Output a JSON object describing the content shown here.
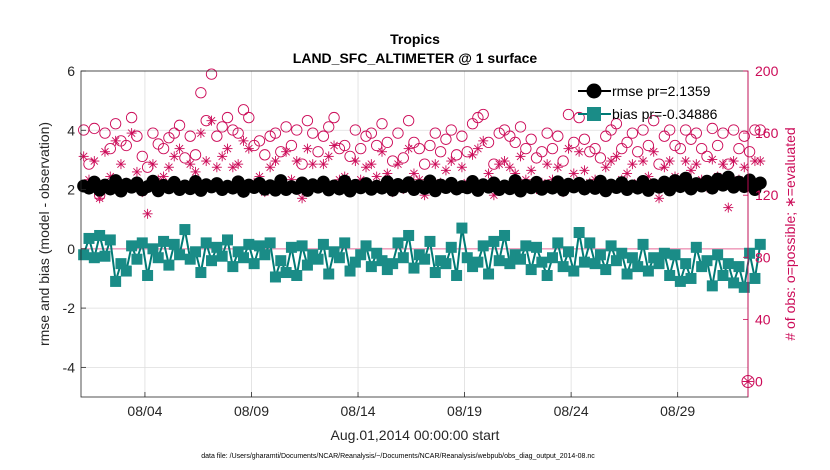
{
  "chart_data": {
    "type": "line",
    "title": "Tropics",
    "subtitle": "LAND_SFC_ALTIMETER @ 1 surface",
    "xlabel": "Aug.01,2014 00:00:00 start",
    "ylabel_left": "rmse and bias (model - observation)",
    "ylabel_right": "# of obs: o=possible; ∗=evaluated",
    "footnote": "data file: /Users/gharamti/Documents/NCAR/Reanalysis/~/Documents/NCAR/Reanalysis/webpub/obs_diag_output_2014-08.nc",
    "x_tick_labels": [
      "08/04",
      "08/09",
      "08/14",
      "08/19",
      "08/24",
      "08/29"
    ],
    "x_tick_days": [
      4,
      9,
      14,
      19,
      24,
      29
    ],
    "xlim_days": [
      1,
      32.3
    ],
    "ylim_left": [
      -5,
      6
    ],
    "yticks_left": [
      "6",
      "4",
      "2",
      "0",
      "-2",
      "-4"
    ],
    "yticks_left_values": [
      6,
      4,
      2,
      0,
      -2,
      -4
    ],
    "ylim_right": [
      -10,
      200
    ],
    "yticks_right": [
      "200",
      "160",
      "120",
      "80",
      "40",
      "0"
    ],
    "yticks_right_values": [
      200,
      160,
      120,
      80,
      40,
      0
    ],
    "grid": true,
    "legend_position": "top-right",
    "samples_per_day": 4,
    "colors": {
      "rmse": "#000000",
      "bias": "#007a75",
      "bias_marker": "#1a8c87",
      "obs": "#cc0b58",
      "zero_line": "#f0a3c0",
      "grid": "#dedede"
    },
    "series": [
      {
        "name": "rmse pr=2.1359",
        "axis": "left",
        "marker": "circle",
        "values": [
          2.12,
          2.05,
          2.25,
          1.98,
          2.15,
          2.02,
          2.3,
          1.95,
          2.18,
          2.08,
          2.22,
          1.99,
          2.1,
          2.28,
          1.96,
          2.14,
          2.06,
          2.24,
          2.0,
          2.12,
          2.03,
          2.27,
          1.97,
          2.16,
          2.09,
          2.2,
          2.0,
          2.11,
          2.05,
          2.26,
          1.94,
          2.15,
          2.07,
          2.21,
          2.01,
          2.13,
          1.98,
          2.3,
          2.0,
          2.1,
          2.04,
          2.22,
          1.97,
          2.16,
          2.08,
          2.25,
          1.99,
          2.12,
          2.02,
          2.28,
          1.95,
          2.14,
          2.06,
          2.2,
          2.01,
          2.11,
          2.05,
          2.26,
          1.98,
          2.17,
          2.09,
          2.23,
          2.0,
          2.13,
          2.04,
          2.29,
          1.96,
          2.15,
          2.07,
          2.21,
          2.02,
          2.1,
          2.06,
          2.27,
          1.97,
          2.16,
          2.08,
          2.22,
          2.0,
          2.12,
          2.03,
          2.3,
          1.95,
          2.14,
          2.06,
          2.24,
          2.01,
          2.11,
          2.05,
          2.26,
          1.98,
          2.18,
          2.09,
          2.21,
          2.02,
          2.13,
          2.04,
          2.28,
          1.96,
          2.15,
          2.07,
          2.23,
          2.0,
          2.12,
          2.05,
          2.27,
          1.97,
          2.16,
          2.08,
          2.25,
          1.99,
          2.3,
          2.1,
          2.38,
          2.02,
          2.2,
          2.12,
          2.28,
          2.05,
          2.35,
          2.15,
          2.42,
          2.08,
          2.25,
          2.1,
          2.32,
          2.0,
          2.22
        ]
      },
      {
        "name": "bias pr=-0.34886",
        "axis": "left",
        "marker": "square",
        "values": [
          -0.2,
          0.35,
          -0.3,
          0.45,
          -0.25,
          0.3,
          -1.1,
          -0.5,
          -0.75,
          0.1,
          -0.35,
          0.2,
          -0.9,
          0.0,
          -0.3,
          0.25,
          -0.55,
          0.15,
          -0.2,
          0.65,
          -0.35,
          -0.1,
          -0.8,
          0.2,
          -0.4,
          0.05,
          -0.25,
          0.3,
          -0.6,
          -0.1,
          -0.3,
          0.15,
          -0.5,
          0.1,
          -0.2,
          0.2,
          -0.95,
          -0.4,
          -0.8,
          0.05,
          -0.9,
          0.1,
          -0.55,
          -0.2,
          -0.35,
          0.15,
          -0.85,
          -0.1,
          -0.3,
          0.2,
          -0.75,
          -0.45,
          -0.2,
          0.1,
          -0.6,
          -0.15,
          -0.4,
          -0.7,
          -0.5,
          0.2,
          -0.3,
          0.45,
          -0.65,
          -0.2,
          -0.35,
          0.25,
          -0.8,
          -0.4,
          -0.5,
          0.05,
          -0.9,
          0.7,
          -0.3,
          -0.6,
          -0.45,
          0.1,
          -0.85,
          0.25,
          -0.4,
          0.45,
          -0.5,
          -0.2,
          -0.35,
          0.1,
          -0.7,
          0.05,
          -0.45,
          -0.9,
          -0.3,
          0.2,
          -0.6,
          -0.1,
          -0.75,
          0.55,
          -0.45,
          0.2,
          -0.5,
          -0.2,
          -0.7,
          0.1,
          -0.4,
          -0.15,
          -0.85,
          -0.3,
          -0.6,
          0.15,
          -0.75,
          -0.3,
          -0.5,
          -0.15,
          -0.9,
          -0.2,
          -1.1,
          -0.5,
          -1.0,
          0.05,
          -0.6,
          -0.4,
          -1.25,
          -0.2,
          -0.9,
          -0.5,
          -1.15,
          -0.6,
          -1.3,
          -0.15,
          -1.0,
          0.15
        ]
      },
      {
        "name": "possible",
        "axis": "right",
        "marker": "o",
        "values": [
          162,
          140,
          163,
          120,
          160,
          150,
          166,
          155,
          152,
          170,
          158,
          145,
          138,
          160,
          153,
          150,
          157,
          160,
          165,
          144,
          158,
          146,
          186,
          168,
          198,
          158,
          164,
          170,
          162,
          160,
          175,
          170,
          152,
          155,
          146,
          158,
          160,
          148,
          164,
          152,
          162,
          140,
          168,
          160,
          148,
          158,
          164,
          170,
          150,
          152,
          145,
          162,
          150,
          158,
          160,
          152,
          166,
          154,
          142,
          160,
          144,
          168,
          154,
          150,
          140,
          152,
          160,
          148,
          156,
          162,
          146,
          158,
          148,
          166,
          170,
          172,
          154,
          140,
          160,
          162,
          158,
          154,
          164,
          150,
          156,
          144,
          148,
          160,
          150,
          158,
          142,
          172,
          154,
          170,
          156,
          148,
          150,
          144,
          158,
          162,
          166,
          150,
          154,
          160,
          148,
          162,
          152,
          168,
          140,
          158,
          162,
          152,
          150,
          162,
          156,
          160,
          150,
          145,
          163,
          152,
          160,
          140,
          162,
          150,
          158,
          148,
          162,
          162
        ]
      },
      {
        "name": "evaluated",
        "axis": "right",
        "marker": "asterisk",
        "values": [
          145,
          130,
          142,
          118,
          148,
          132,
          155,
          140,
          128,
          160,
          135,
          122,
          108,
          140,
          130,
          132,
          138,
          145,
          150,
          125,
          140,
          135,
          160,
          142,
          168,
          138,
          145,
          150,
          138,
          140,
          155,
          150,
          128,
          132,
          122,
          138,
          142,
          125,
          148,
          130,
          142,
          118,
          150,
          140,
          126,
          140,
          145,
          152,
          130,
          132,
          125,
          142,
          130,
          138,
          140,
          132,
          148,
          134,
          122,
          140,
          124,
          150,
          134,
          130,
          120,
          130,
          140,
          128,
          136,
          142,
          126,
          138,
          128,
          146,
          150,
          155,
          134,
          120,
          140,
          142,
          138,
          134,
          145,
          130,
          136,
          124,
          128,
          140,
          130,
          138,
          122,
          150,
          134,
          148,
          136,
          128,
          130,
          124,
          138,
          142,
          145,
          130,
          134,
          140,
          128,
          142,
          132,
          148,
          118,
          138,
          142,
          132,
          130,
          142,
          136,
          140,
          130,
          125,
          143,
          132,
          140,
          112,
          142,
          130,
          138,
          128,
          142,
          142
        ]
      }
    ],
    "extra_points": [
      {
        "label": "overlay",
        "axis": "right",
        "marker": "o-and-asterisk",
        "day": 32.3,
        "value": 0
      }
    ]
  }
}
